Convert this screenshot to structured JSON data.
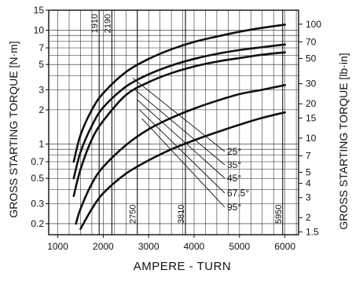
{
  "chart_data": {
    "type": "line",
    "xlabel": "AMPERE - TURN",
    "ylabel_left": "GROSS STARTING TORQUE [N·m]",
    "ylabel_right": "GROSS STARTING TORQUE [lb·in]",
    "x_scale": "linear",
    "y_scale": "log",
    "xlim": [
      800,
      6300
    ],
    "ylim_left": [
      0.16,
      15
    ],
    "x_ticks": [
      1000,
      2000,
      3000,
      4000,
      5000,
      6000
    ],
    "x_tick_labels": [
      "1000",
      "2000",
      "3000",
      "4000",
      "5000",
      "6000"
    ],
    "y_left_ticks": [
      0.2,
      0.3,
      0.5,
      0.7,
      1,
      2,
      3,
      5,
      7,
      10,
      15
    ],
    "y_left_tick_labels": [
      "0.2",
      "0.3",
      "0.5",
      "0.7",
      "1",
      "2",
      "3",
      "5",
      "7",
      "10",
      "15"
    ],
    "y_right_ticks_lbin": [
      1.5,
      2,
      3,
      4,
      5,
      7,
      10,
      15,
      20,
      30,
      50,
      70,
      100
    ],
    "y_right_tick_labels": [
      "1.5",
      "2",
      "3",
      "4",
      "5",
      "7",
      "10",
      "15",
      "20",
      "30",
      "50",
      "70",
      "100"
    ],
    "lbin_per_nm": 8.85,
    "grid": true,
    "reference_lines": [
      {
        "x": 1910,
        "label": "1910"
      },
      {
        "x": 2190,
        "label": "2190"
      },
      {
        "x": 2750,
        "label": "2750"
      },
      {
        "x": 3810,
        "label": "3810"
      },
      {
        "x": 5950,
        "label": "5950"
      }
    ],
    "series": [
      {
        "name": "25°",
        "x": [
          1350,
          1500,
          1750,
          2000,
          2500,
          3000,
          3500,
          4000,
          4500,
          5000,
          5500,
          6000
        ],
        "y": [
          0.7,
          1.2,
          2.0,
          2.8,
          4.3,
          5.6,
          6.8,
          7.9,
          8.8,
          9.7,
          10.5,
          11.2
        ]
      },
      {
        "name": "35°",
        "x": [
          1350,
          1500,
          1750,
          2000,
          2500,
          3000,
          3500,
          4000,
          4500,
          5000,
          5500,
          6000
        ],
        "y": [
          0.5,
          0.85,
          1.45,
          2.1,
          3.2,
          4.1,
          4.9,
          5.6,
          6.2,
          6.7,
          7.1,
          7.5
        ]
      },
      {
        "name": "45°",
        "x": [
          1350,
          1500,
          1750,
          2000,
          2500,
          3000,
          3500,
          4000,
          4500,
          5000,
          5500,
          6000
        ],
        "y": [
          0.35,
          0.6,
          1.1,
          1.6,
          2.7,
          3.5,
          4.2,
          4.8,
          5.3,
          5.7,
          6.1,
          6.4
        ]
      },
      {
        "name": "67.5°",
        "x": [
          1400,
          1500,
          1750,
          2000,
          2500,
          3000,
          3500,
          4000,
          4500,
          5000,
          5500,
          6000
        ],
        "y": [
          0.2,
          0.27,
          0.45,
          0.63,
          0.98,
          1.35,
          1.7,
          2.05,
          2.4,
          2.75,
          3.0,
          3.3
        ]
      },
      {
        "name": "95°",
        "x": [
          1500,
          1750,
          2000,
          2500,
          3000,
          3500,
          4000,
          4500,
          5000,
          5500,
          6000
        ],
        "y": [
          0.18,
          0.27,
          0.37,
          0.55,
          0.72,
          0.9,
          1.08,
          1.27,
          1.48,
          1.7,
          1.9
        ]
      }
    ]
  }
}
